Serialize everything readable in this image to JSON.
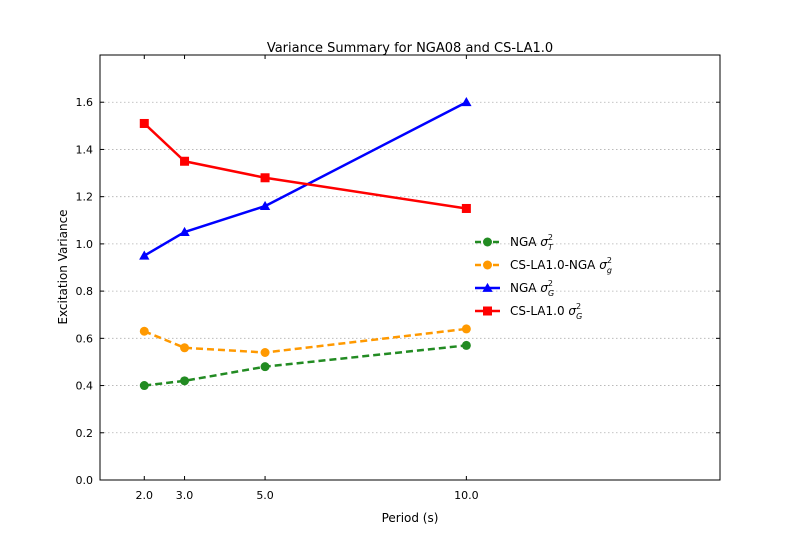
{
  "chart_data": {
    "type": "line",
    "title": "Variance Summary for NGA08 and CS-LA1.0",
    "xlabel": "Period (s)",
    "ylabel": "Excitation Variance",
    "xlim": [
      0.9,
      16.3
    ],
    "ylim": [
      0.0,
      1.8
    ],
    "x_ticks": [
      2.0,
      3.0,
      5.0,
      10.0
    ],
    "x_tick_labels": [
      "2.0",
      "3.0",
      "5.0",
      "10.0"
    ],
    "y_ticks": [
      0.0,
      0.2,
      0.4,
      0.6,
      0.8,
      1.0,
      1.2,
      1.4,
      1.6
    ],
    "y_tick_labels": [
      "0.0",
      "0.2",
      "0.4",
      "0.6",
      "0.8",
      "1.0",
      "1.2",
      "1.4",
      "1.6"
    ],
    "grid": "horizontal dotted",
    "legend_position": "center-right",
    "series": [
      {
        "name": "NGA",
        "sym": "σ",
        "sub": "T",
        "color": "#228B22",
        "dash": "dashed",
        "marker": "circle",
        "x": [
          2.0,
          3.0,
          5.0,
          10.0
        ],
        "values": [
          0.4,
          0.42,
          0.48,
          0.57
        ]
      },
      {
        "name": "CS-LA1.0-NGA",
        "sym": "σ",
        "sub": "g",
        "color": "#FF9900",
        "dash": "dashed",
        "marker": "circle",
        "x": [
          2.0,
          3.0,
          5.0,
          10.0
        ],
        "values": [
          0.63,
          0.56,
          0.54,
          0.64
        ]
      },
      {
        "name": "NGA",
        "sym": "σ",
        "sub": "G",
        "color": "#0000FF",
        "dash": "solid",
        "marker": "triangle",
        "x": [
          2.0,
          3.0,
          5.0,
          10.0
        ],
        "values": [
          0.95,
          1.05,
          1.16,
          1.6
        ]
      },
      {
        "name": "CS-LA1.0",
        "sym": "σ",
        "sub": "G",
        "color": "#FF0000",
        "dash": "solid",
        "marker": "square",
        "x": [
          2.0,
          3.0,
          5.0,
          10.0
        ],
        "values": [
          1.51,
          1.35,
          1.28,
          1.15
        ]
      }
    ]
  }
}
